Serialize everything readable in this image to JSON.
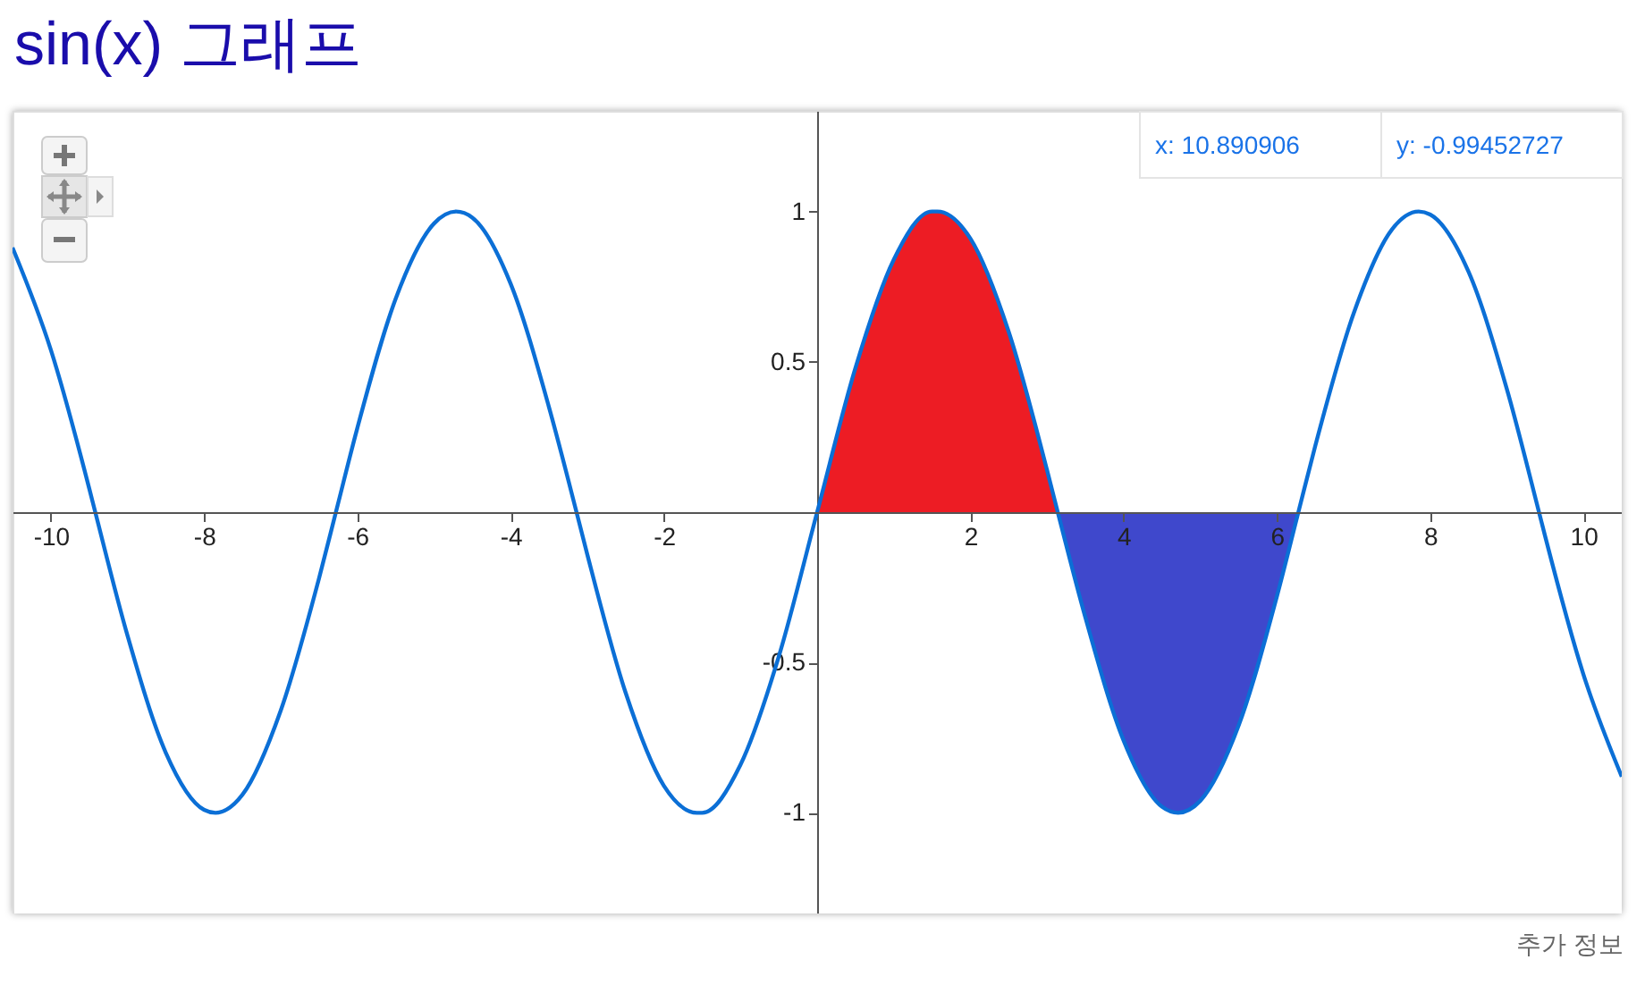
{
  "chart_data": {
    "type": "line",
    "title": "sin(x) 그래프",
    "xlim": [
      -10.5,
      10.5
    ],
    "ylim": [
      -1.335,
      1.335
    ],
    "xticks": [
      -10,
      -8,
      -6,
      -4,
      -2,
      2,
      4,
      6,
      8,
      10
    ],
    "yticks": [
      -1,
      -0.5,
      0.5,
      1
    ],
    "grid": false,
    "series": [
      {
        "type": "area",
        "color": "#ed1c24",
        "x": [
          0,
          0.5,
          1,
          1.5,
          1.57,
          2,
          2.5,
          3,
          3.14
        ],
        "values": [
          0,
          0.48,
          0.84,
          1.0,
          1,
          0.91,
          0.6,
          0.14,
          0
        ]
      },
      {
        "type": "area",
        "color": "#3f48cc",
        "x": [
          3.14,
          3.5,
          4,
          4.5,
          4.71,
          5,
          5.5,
          6,
          6.28
        ],
        "values": [
          0,
          -0.35,
          -0.76,
          -0.98,
          -1,
          -0.96,
          -0.71,
          -0.28,
          0
        ]
      },
      {
        "color": "#0b6fd6",
        "x": [
          -10.5,
          -10,
          -9.5,
          -9.42,
          -9,
          -8.5,
          -8,
          -7.85,
          -7.5,
          -7,
          -6.5,
          -6.28,
          -6,
          -5.5,
          -5,
          -4.71,
          -4.5,
          -4,
          -3.5,
          -3.14,
          -3,
          -2.5,
          -2,
          -1.57,
          -1.5,
          -1,
          -0.5,
          0,
          0.5,
          1,
          1.5,
          1.57,
          2,
          2.5,
          3,
          3.14,
          3.5,
          4,
          4.5,
          4.71,
          5,
          5.5,
          6,
          6.28,
          6.5,
          7,
          7.5,
          7.85,
          8,
          8.5,
          9,
          9.42,
          9.5,
          10,
          10.5
        ],
        "values": [
          0.88,
          0.54,
          0.08,
          0,
          -0.41,
          -0.8,
          -0.99,
          -1,
          -0.94,
          -0.66,
          -0.22,
          0,
          0.28,
          0.71,
          0.96,
          1,
          0.98,
          0.76,
          0.35,
          0,
          -0.14,
          -0.6,
          -0.91,
          -1,
          -1.0,
          -0.84,
          -0.48,
          0,
          0.48,
          0.84,
          1.0,
          1,
          0.91,
          0.6,
          0.14,
          0,
          -0.35,
          -0.76,
          -0.98,
          -1,
          -0.96,
          -0.71,
          -0.28,
          0,
          0.22,
          0.66,
          0.94,
          1,
          0.99,
          0.8,
          0.41,
          0,
          -0.08,
          -0.54,
          -0.88
        ]
      }
    ],
    "annotations": [
      "x: 10.890906",
      "y: -0.99452727",
      "추가 정보"
    ]
  }
}
